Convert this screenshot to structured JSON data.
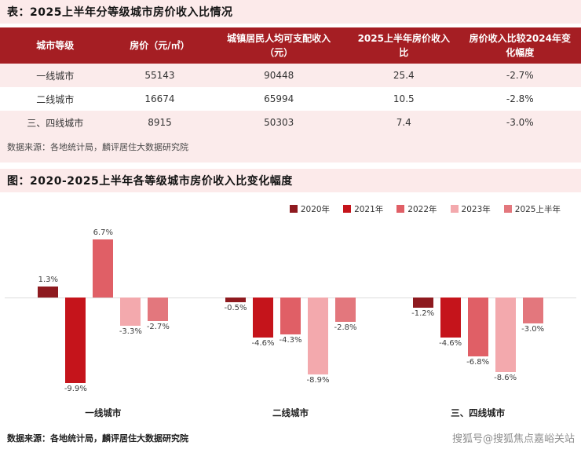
{
  "page": {
    "watermark": "搜狐号@搜狐焦点嘉峪关站"
  },
  "chart_data": [
    {
      "type": "table",
      "title": "表：2025上半年分等级城市房价收入比情况",
      "columns": [
        "城市等级",
        "房价（元/㎡）",
        "城镇居民人均可支配收入（元）",
        "2025上半年房价收入比",
        "房价收入比较2024年变化幅度"
      ],
      "rows": [
        [
          "一线城市",
          "55143",
          "90448",
          "25.4",
          "-2.7%"
        ],
        [
          "二线城市",
          "16674",
          "65994",
          "10.5",
          "-2.8%"
        ],
        [
          "三、四线城市",
          "8915",
          "50303",
          "7.4",
          "-3.0%"
        ]
      ],
      "source": "数据来源：各地统计局，麟评居住大数据研究院"
    },
    {
      "type": "bar",
      "title": "图：2020-2025上半年各等级城市房价收入比变化幅度",
      "categories": [
        "一线城市",
        "二线城市",
        "三、四线城市"
      ],
      "series": [
        {
          "name": "2020年",
          "color": "#8E1A1F",
          "values": [
            1.3,
            -0.5,
            -1.2
          ]
        },
        {
          "name": "2021年",
          "color": "#C5141B",
          "values": [
            -9.9,
            -4.6,
            -4.6
          ]
        },
        {
          "name": "2022年",
          "color": "#E05F66",
          "values": [
            6.7,
            -4.3,
            -6.8
          ]
        },
        {
          "name": "2023年",
          "color": "#F3A9AD",
          "values": [
            -3.3,
            -8.9,
            -8.6
          ]
        },
        {
          "name": "2025上半年",
          "color": "#E3777D",
          "values": [
            -2.7,
            -2.8,
            -3.0
          ]
        }
      ],
      "value_suffix": "%",
      "ylim": [
        -11,
        8
      ],
      "grid": false,
      "legend_position": "top-right",
      "xlabel": "",
      "ylabel": "",
      "source": "数据来源：各地统计局，麟评居住大数据研究院"
    }
  ]
}
